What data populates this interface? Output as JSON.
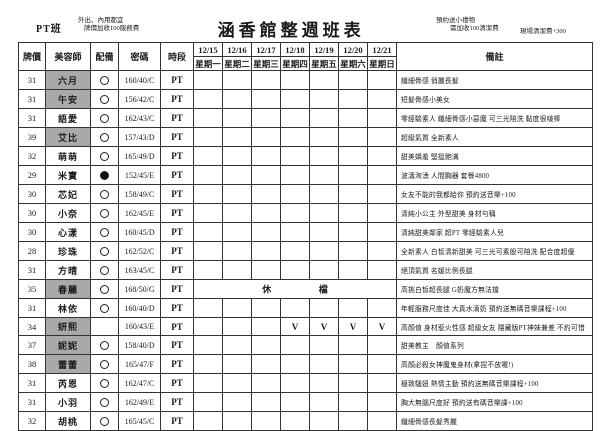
{
  "page": {
    "top_left_label": "PT班",
    "top_left_note_line1": "外出、內用都宜",
    "top_left_note_line2": "牌價加收100服務費",
    "title": "涵香館整週班表",
    "top_right_note_line1": "預約送小禮物",
    "top_right_note_line2": "需加收100清潔費",
    "top_far_right_note": "現場清潔費+300"
  },
  "colors": {
    "highlight_bg": "#a9a9a9",
    "border": "#333333",
    "text": "#1a1a1a"
  },
  "table": {
    "headers": {
      "price": "牌價",
      "beautician": "美容師",
      "equipment": "配備",
      "password": "密碼",
      "period": "時段",
      "remark": "備註"
    },
    "dates": [
      {
        "date": "12/15",
        "weekday": "星期一"
      },
      {
        "date": "12/16",
        "weekday": "星期二"
      },
      {
        "date": "12/17",
        "weekday": "星期三"
      },
      {
        "date": "12/18",
        "weekday": "星期四"
      },
      {
        "date": "12/19",
        "weekday": "星期五"
      },
      {
        "date": "12/20",
        "weekday": "星期六"
      },
      {
        "date": "12/21",
        "weekday": "星期日"
      }
    ],
    "rows": [
      {
        "price": "31",
        "name": "六月",
        "highlight": true,
        "equipment": "open",
        "password": "160/40/C",
        "period": "PT",
        "schedule": [
          "",
          "",
          "",
          "",
          "",
          "",
          ""
        ],
        "remark": "纖細骨感 俏麗長髮"
      },
      {
        "price": "31",
        "name": "午安",
        "highlight": true,
        "equipment": "open",
        "password": "156/42/C",
        "period": "PT",
        "schedule": [
          "",
          "",
          "",
          "",
          "",
          "",
          ""
        ],
        "remark": "短髮骨感小美女"
      },
      {
        "price": "31",
        "name": "語愛",
        "highlight": false,
        "equipment": "open",
        "password": "162/43/C",
        "period": "PT",
        "schedule": [
          "",
          "",
          "",
          "",
          "",
          "",
          ""
        ],
        "remark": "零經驗素人 纖細骨感小惡魔 可三光陪洗 黏度很啵棒"
      },
      {
        "price": "39",
        "name": "艾比",
        "highlight": true,
        "equipment": "open",
        "password": "157/43/D",
        "period": "PT",
        "schedule": [
          "",
          "",
          "",
          "",
          "",
          "",
          ""
        ],
        "remark": "超級氣質 全新素人"
      },
      {
        "price": "32",
        "name": "萌萌",
        "highlight": false,
        "equipment": "open",
        "password": "165/49/D",
        "period": "PT",
        "schedule": [
          "",
          "",
          "",
          "",
          "",
          "",
          ""
        ],
        "remark": "甜美嬌羞 堅挺飽滿"
      },
      {
        "price": "29",
        "name": "米寶",
        "highlight": false,
        "equipment": "filled",
        "password": "152/45/E",
        "period": "PT",
        "schedule": [
          "",
          "",
          "",
          "",
          "",
          "",
          ""
        ],
        "remark": "波濤洶湧 人間胸器 套餐4800"
      },
      {
        "price": "30",
        "name": "芯妃",
        "highlight": false,
        "equipment": "open",
        "password": "158/49/C",
        "period": "PT",
        "schedule": [
          "",
          "",
          "",
          "",
          "",
          "",
          ""
        ],
        "remark": "女友不能的我都給你 預約送音樂+100"
      },
      {
        "price": "30",
        "name": "小奈",
        "highlight": false,
        "equipment": "open",
        "password": "162/45/E",
        "period": "PT",
        "schedule": [
          "",
          "",
          "",
          "",
          "",
          "",
          ""
        ],
        "remark": "清純小公主 外型甜美 身材勻稱"
      },
      {
        "price": "30",
        "name": "心漾",
        "highlight": false,
        "equipment": "open",
        "password": "160/45/D",
        "period": "PT",
        "schedule": [
          "",
          "",
          "",
          "",
          "",
          "",
          ""
        ],
        "remark": "清純甜美鄰家 超PT 零經驗素人兒"
      },
      {
        "price": "28",
        "name": "珍珠",
        "highlight": false,
        "equipment": "open",
        "password": "162/52/C",
        "period": "PT",
        "schedule": [
          "",
          "",
          "",
          "",
          "",
          "",
          ""
        ],
        "remark": "全新素人 白皙清新甜美 可三光可素股可陪洗 配合度超優"
      },
      {
        "price": "31",
        "name": "方晴",
        "highlight": false,
        "equipment": "open",
        "password": "163/45/C",
        "period": "PT",
        "schedule": [
          "",
          "",
          "",
          "",
          "",
          "",
          ""
        ],
        "remark": "絕頂氣質 名媛比例長腿"
      },
      {
        "price": "35",
        "name": "春麗",
        "highlight": true,
        "equipment": "open",
        "password": "168/50/G",
        "period": "PT",
        "schedule_merged": [
          "休",
          "檔"
        ],
        "remark": "高挑白皙超長腿 G奶魔方無法擋"
      },
      {
        "price": "31",
        "name": "林依",
        "highlight": false,
        "equipment": "open",
        "password": "160/40/D",
        "period": "PT",
        "schedule": [
          "",
          "",
          "",
          "",
          "",
          "",
          ""
        ],
        "remark": "年輕服務尺度佳 大真水滴奶 預約送無碼音樂課程+100"
      },
      {
        "price": "34",
        "name": "妍熙",
        "highlight": true,
        "equipment": "none",
        "password": "160/43/E",
        "period": "PT",
        "schedule": [
          "",
          "",
          "",
          "V",
          "V",
          "V",
          "V"
        ],
        "remark": "高顏值 身材惹火性感 超級女友 隱藏版PT神妹兼差 不約可惜"
      },
      {
        "price": "37",
        "name": "妮妮",
        "highlight": true,
        "equipment": "open",
        "password": "158/40/D",
        "period": "PT",
        "schedule": [
          "",
          "",
          "",
          "",
          "",
          "",
          ""
        ],
        "remark": "甜美教主　顏值系列"
      },
      {
        "price": "38",
        "name": "蕾蕾",
        "highlight": true,
        "equipment": "open",
        "password": "165/47/F",
        "period": "PT",
        "schedule": [
          "",
          "",
          "",
          "",
          "",
          "",
          ""
        ],
        "remark": "高顏必殺女神魔鬼身材(拿捏不放喔!)"
      },
      {
        "price": "31",
        "name": "芮恩",
        "highlight": false,
        "equipment": "open",
        "password": "162/47/C",
        "period": "PT",
        "schedule": [
          "",
          "",
          "",
          "",
          "",
          "",
          ""
        ],
        "remark": "極致騷妞 熱情主動 預約送無碼音樂課程+100"
      },
      {
        "price": "31",
        "name": "小羽",
        "highlight": false,
        "equipment": "open",
        "password": "162/49/E",
        "period": "PT",
        "schedule": [
          "",
          "",
          "",
          "",
          "",
          "",
          ""
        ],
        "remark": "胸大無腦尺度好 預約送有碼音樂課+100"
      },
      {
        "price": "32",
        "name": "胡桃",
        "highlight": false,
        "equipment": "open",
        "password": "165/45/C",
        "period": "PT",
        "schedule": [
          "",
          "",
          "",
          "",
          "",
          "",
          ""
        ],
        "remark": "纖細骨感長髮秀麗"
      }
    ]
  }
}
